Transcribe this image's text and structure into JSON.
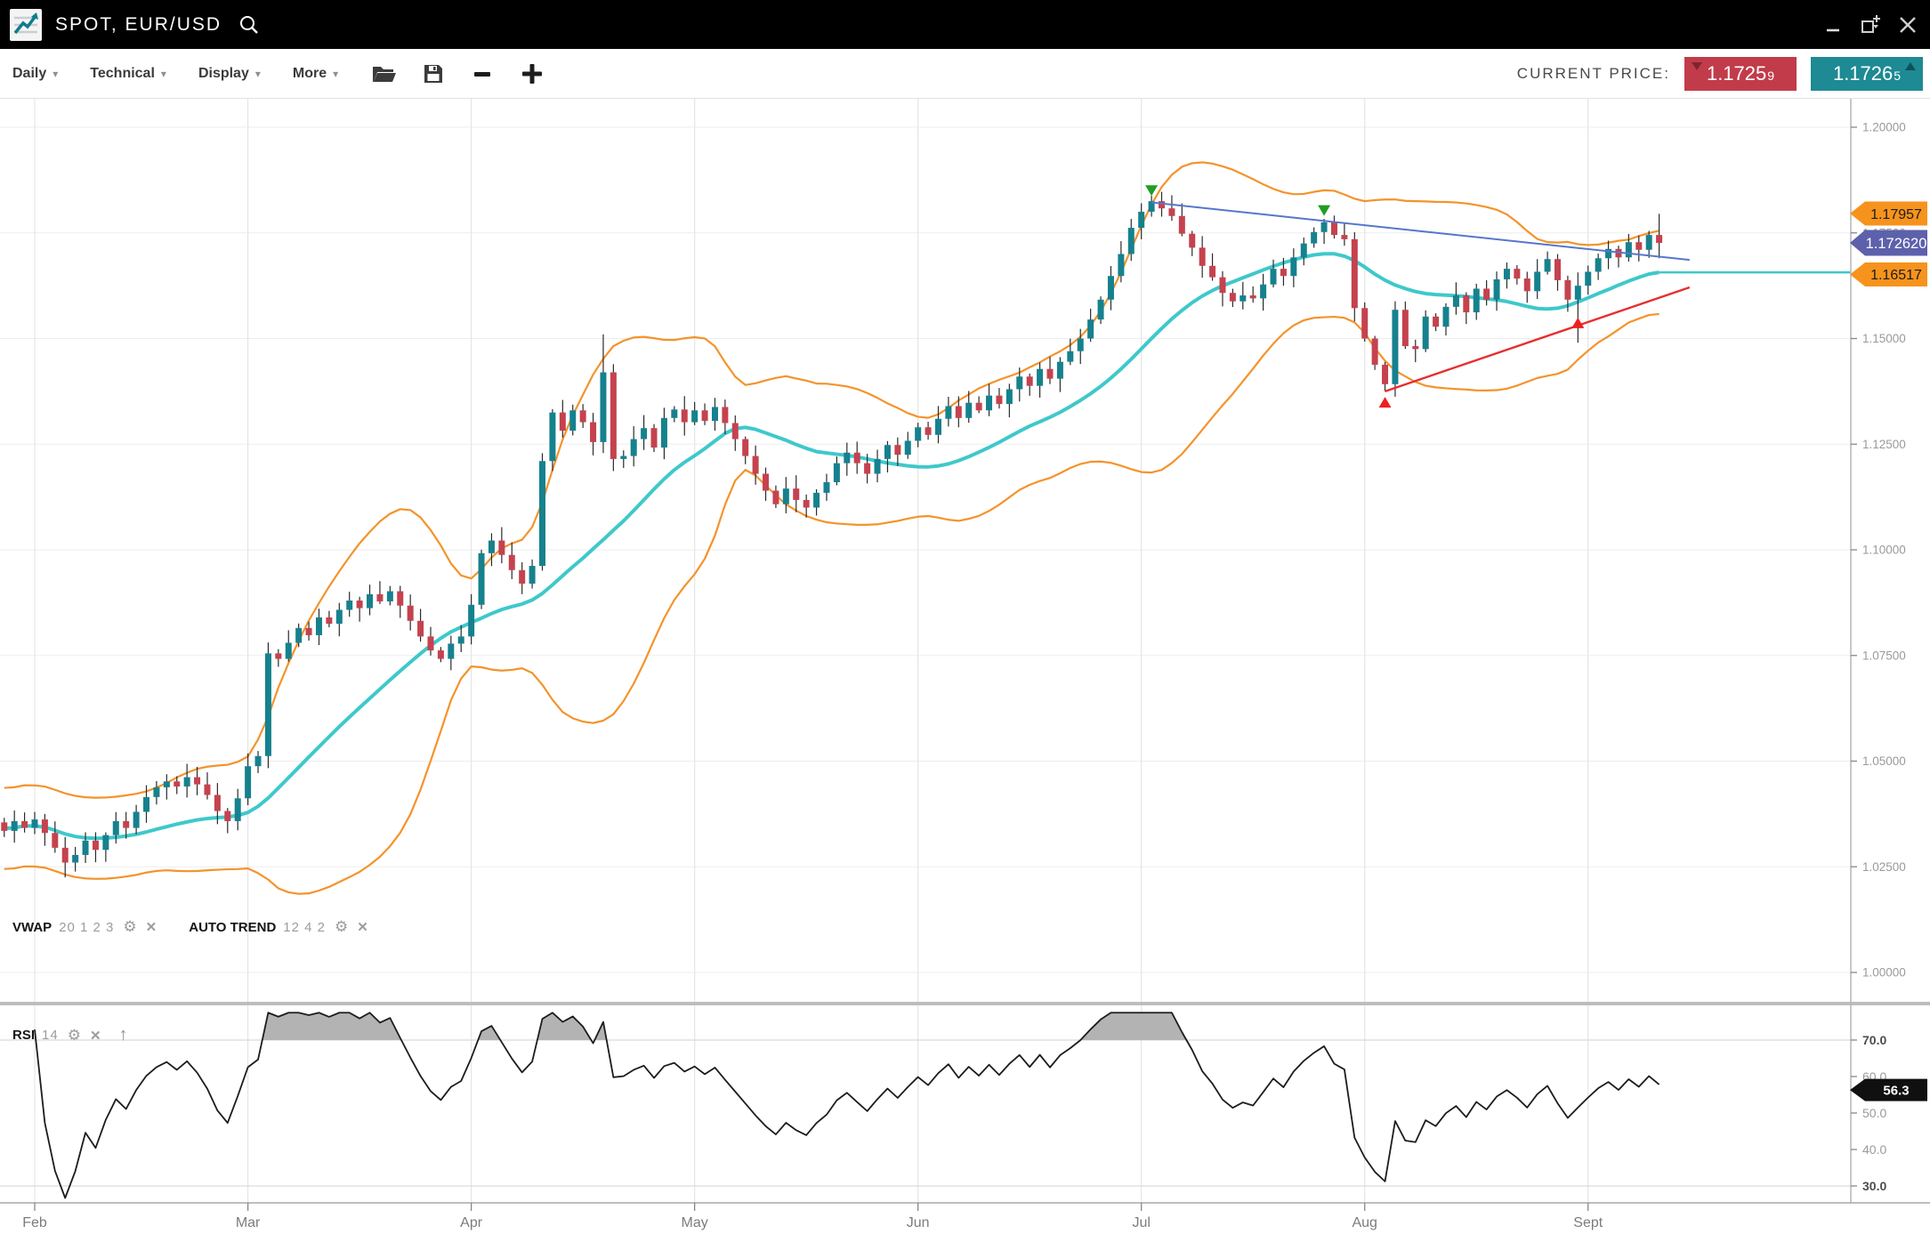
{
  "title_bar": {
    "symbol": "SPOT, EUR/USD"
  },
  "icons": {
    "gear": "⚙",
    "close": "✕",
    "arrow_up": "↑",
    "chevron_down": "▾"
  },
  "toolbar": {
    "menus": [
      {
        "label": "Daily"
      },
      {
        "label": "Technical"
      },
      {
        "label": "Display"
      },
      {
        "label": "More"
      }
    ],
    "current_price_label": "CURRENT PRICE:",
    "bid": "1.1725",
    "bid_sup": "9",
    "ask": "1.1726",
    "ask_sup": "5"
  },
  "legends": {
    "vwap": {
      "name": "VWAP",
      "params": "20 1 2 3"
    },
    "auto_trend": {
      "name": "AUTO TREND",
      "params": "12 4 2"
    },
    "rsi": {
      "name": "RSI",
      "params": "14"
    }
  },
  "price_tags": {
    "upper": {
      "label": "1.17957",
      "price": 1.17957
    },
    "current": {
      "label": "1.172620",
      "price": 1.17262
    },
    "lower": {
      "label": "1.16517",
      "price": 1.16517
    }
  },
  "rsi_tag": {
    "label": "56.3",
    "value": 56.3
  },
  "colors": {
    "up_candle": "#16818e",
    "down_candle": "#c5424e",
    "wick": "#2b2b2b",
    "band": "#f4932b",
    "vwap": "#3fc8cb",
    "blue_trend": "#5577cc",
    "red_trend": "#e62e2e",
    "sell_marker": "#1f9e23",
    "buy_marker": "#ef1f1f",
    "tag_orange": "#f6931d",
    "tag_purple": "#5d60ab",
    "rsi_tag_bg": "#101010",
    "bid_bg": "#c23b4a",
    "ask_bg": "#1e8a93",
    "grid": "#ededed",
    "month_grid": "#e5e5e5",
    "axis_line": "#a8a8a8",
    "axis_text": "#9a9a9a",
    "month_text": "#7c7c7c",
    "rsi_line": "#1c1c1c",
    "rsi_fill": "#b3b3b3"
  },
  "chart_data": {
    "type": "candlestick",
    "title": "SPOT, EUR/USD Daily",
    "y_axis": {
      "labels": [
        "1.20000",
        "1.17500",
        "1.15000",
        "1.12500",
        "1.10000",
        "1.07500",
        "1.05000",
        "1.02500",
        "1.00000"
      ],
      "values": [
        1.2,
        1.175,
        1.15,
        1.125,
        1.1,
        1.075,
        1.05,
        1.025,
        1.0
      ]
    },
    "x_axis": {
      "months": [
        "Feb",
        "Mar",
        "Apr",
        "May",
        "Jun",
        "Jul",
        "Aug",
        "Sept"
      ],
      "month_start_indices": [
        3,
        24,
        46,
        68,
        90,
        112,
        134,
        156
      ]
    },
    "closes": [
      1.0335,
      1.0358,
      1.0342,
      1.0362,
      1.033,
      1.0295,
      1.026,
      1.0278,
      1.0312,
      1.029,
      1.0325,
      1.0358,
      1.0342,
      1.038,
      1.0415,
      1.0438,
      1.0452,
      1.044,
      1.0462,
      1.0445,
      1.042,
      1.0382,
      1.0358,
      1.0412,
      1.0488,
      1.0512,
      1.0755,
      1.0742,
      1.078,
      1.0815,
      1.0798,
      1.084,
      1.0825,
      1.0858,
      1.088,
      1.0862,
      1.0895,
      1.0878,
      1.0902,
      1.0868,
      1.0832,
      1.0795,
      1.0762,
      1.0742,
      1.0778,
      1.0795,
      1.087,
      1.0992,
      1.1022,
      1.0988,
      1.0952,
      1.092,
      1.0962,
      1.121,
      1.1325,
      1.1282,
      1.133,
      1.1302,
      1.1255,
      1.142,
      1.1215,
      1.1222,
      1.1262,
      1.1288,
      1.1242,
      1.1312,
      1.1332,
      1.1302,
      1.133,
      1.1305,
      1.1338,
      1.13,
      1.1262,
      1.1222,
      1.118,
      1.114,
      1.1108,
      1.1145,
      1.1118,
      1.11,
      1.1135,
      1.116,
      1.1205,
      1.123,
      1.1205,
      1.118,
      1.1215,
      1.1248,
      1.1225,
      1.1258,
      1.129,
      1.1272,
      1.131,
      1.134,
      1.1312,
      1.1348,
      1.133,
      1.1365,
      1.1345,
      1.138,
      1.141,
      1.1388,
      1.1428,
      1.1405,
      1.1445,
      1.147,
      1.15,
      1.1545,
      1.1592,
      1.1648,
      1.17,
      1.1762,
      1.18,
      1.1825,
      1.1808,
      1.179,
      1.1748,
      1.1715,
      1.1672,
      1.1645,
      1.1608,
      1.1588,
      1.1602,
      1.1595,
      1.1628,
      1.1665,
      1.1648,
      1.1692,
      1.1725,
      1.1752,
      1.1775,
      1.1745,
      1.1735,
      1.1572,
      1.15,
      1.1438,
      1.1392,
      1.1568,
      1.1482,
      1.1475,
      1.1552,
      1.1528,
      1.1575,
      1.1602,
      1.1562,
      1.1618,
      1.1592,
      1.164,
      1.1665,
      1.1642,
      1.1612,
      1.1658,
      1.1688,
      1.1638,
      1.1592,
      1.1625,
      1.1658,
      1.169,
      1.1712,
      1.1692,
      1.1728,
      1.171,
      1.1745,
      1.17262
    ],
    "wick_overrides": {
      "6": {
        "low": 1.0225
      },
      "59": {
        "high": 1.151
      },
      "113": {
        "high": 1.1838
      },
      "136": {
        "low": 1.1375
      },
      "155": {
        "low": 1.149
      },
      "163": {
        "high": 1.1795,
        "low": 1.169
      }
    },
    "markers": [
      {
        "index": 113,
        "price": 1.1852,
        "dir": "down",
        "kind": "sell"
      },
      {
        "index": 130,
        "price": 1.1805,
        "dir": "down",
        "kind": "sell"
      },
      {
        "index": 136,
        "price": 1.1347,
        "dir": "up",
        "kind": "buy"
      },
      {
        "index": 155,
        "price": 1.1535,
        "dir": "up",
        "kind": "buy"
      }
    ],
    "trendlines": [
      {
        "color_key": "blue_trend",
        "from": [
          113,
          1.1822
        ],
        "to": [
          166,
          1.1686
        ]
      },
      {
        "color_key": "red_trend",
        "from": [
          136,
          1.1375
        ],
        "to": [
          166,
          1.1621
        ]
      }
    ],
    "indicators": {
      "vwap_window": 20,
      "band_mult": 2,
      "rsi_period": 14,
      "rsi_levels": [
        70,
        60,
        50,
        40,
        30
      ],
      "rsi_level_labels": [
        "70.0",
        "60.0",
        "50.0",
        "40.0",
        "30.0"
      ],
      "rsi_last": 56.3
    }
  }
}
